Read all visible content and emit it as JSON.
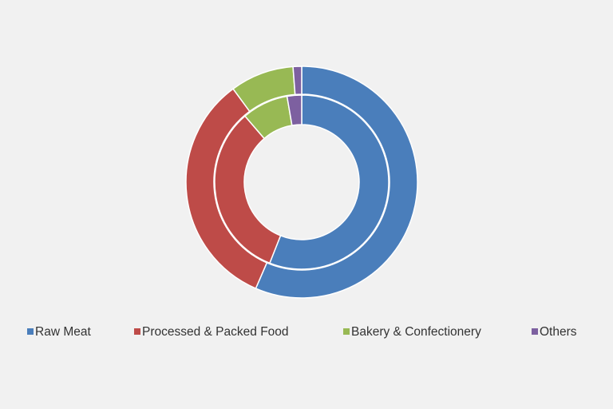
{
  "chart_data": {
    "type": "donut",
    "categories": [
      "Raw Meat",
      "Processed & Packed Food",
      "Bakery & Confectionery",
      "Others"
    ],
    "colors": [
      "#4a7ebb",
      "#be4b48",
      "#98b954",
      "#7d60a0"
    ],
    "series": [
      {
        "values": [
          56.5,
          33.4,
          8.9,
          1.2
        ]
      },
      {
        "values": [
          56.0,
          32.7,
          8.6,
          2.7
        ]
      }
    ],
    "legend": "bottom"
  }
}
